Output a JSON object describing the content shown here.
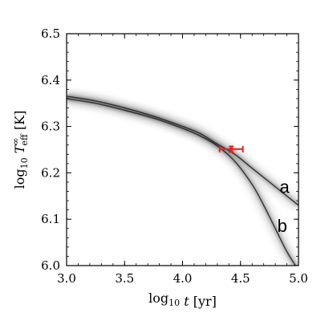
{
  "chart_data": {
    "type": "line",
    "title": "",
    "xlabel": "log₁₀ t [yr]",
    "ylabel": "log₁₀ T∞eff [K]",
    "xlim": [
      3.0,
      5.0
    ],
    "ylim": [
      6.0,
      6.5
    ],
    "x_ticks": [
      3.0,
      3.5,
      4.0,
      4.5,
      5.0
    ],
    "x_tick_labels": [
      "3.0",
      "3.5",
      "4.0",
      "4.5",
      "5.0"
    ],
    "y_ticks": [
      6.0,
      6.1,
      6.2,
      6.3,
      6.4,
      6.5
    ],
    "y_tick_labels": [
      "6.0",
      "6.1",
      "6.2",
      "6.3",
      "6.4",
      "6.5"
    ],
    "grid": false,
    "series": [
      {
        "name": "a",
        "style": "grayscale density band",
        "x": [
          3.0,
          3.25,
          3.5,
          3.75,
          4.0,
          4.15,
          4.3,
          4.45,
          4.6,
          4.75,
          4.9,
          5.0
        ],
        "y": [
          6.365,
          6.355,
          6.34,
          6.322,
          6.3,
          6.285,
          6.262,
          6.24,
          6.21,
          6.18,
          6.15,
          6.13
        ]
      },
      {
        "name": "b",
        "style": "grayscale density band",
        "x": [
          3.0,
          3.25,
          3.5,
          3.75,
          4.0,
          4.15,
          4.3,
          4.45,
          4.6,
          4.7,
          4.8,
          4.9,
          5.0
        ],
        "y": [
          6.36,
          6.35,
          6.335,
          6.318,
          6.296,
          6.28,
          6.258,
          6.225,
          6.175,
          6.13,
          6.08,
          6.03,
          5.99
        ]
      }
    ],
    "data_point": {
      "x": 4.42,
      "y": 6.251,
      "x_err": 0.1,
      "y_err": 0.006,
      "color": "#e8221f"
    },
    "curve_labels": [
      {
        "text": "a",
        "x": 4.88,
        "y": 6.157
      },
      {
        "text": "b",
        "x": 4.86,
        "y": 6.073
      }
    ]
  }
}
